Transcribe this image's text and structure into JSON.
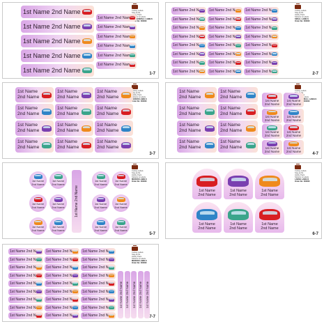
{
  "name_single": "1st Name 2nd Name",
  "first_name": "1st Name",
  "second_name": "2nd Name",
  "brand_lines": [
    "Cutting Labels",
    "Stay-at-Pa",
    "Hobby Pack",
    "Stickers & Labels"
  ],
  "sheets": [
    {
      "number": "1-7",
      "type_label": "LARGE/SMALL LABELS",
      "order": "Order No: 000000"
    },
    {
      "number": "2-7",
      "type_label": "SMALL LABELS",
      "order": "Order No: 000000"
    },
    {
      "number": "3-7",
      "type_label": "MEDIUM LABELS",
      "order": "Order No: 000000"
    },
    {
      "number": "4-7",
      "type_label": "MEDIUM/SMALL LABELS",
      "order": "Order No: 000000"
    },
    {
      "number": "5-7",
      "type_label": "MEDIUM LABELS",
      "order": "Order No: 000000"
    },
    {
      "number": "6-7",
      "type_label": "LARGE LABELS",
      "order": "Order No: 000000"
    },
    {
      "number": "7-7",
      "type_label": "MEDIUM LABELS",
      "order": "Order No: 000000"
    }
  ],
  "car_colors": [
    "red",
    "purple",
    "orange",
    "blue",
    "teal"
  ],
  "colors": {
    "label_purple": "#d9a6e6",
    "label_peach": "#fbe2d6",
    "brand_brown": "#7b2a10"
  }
}
